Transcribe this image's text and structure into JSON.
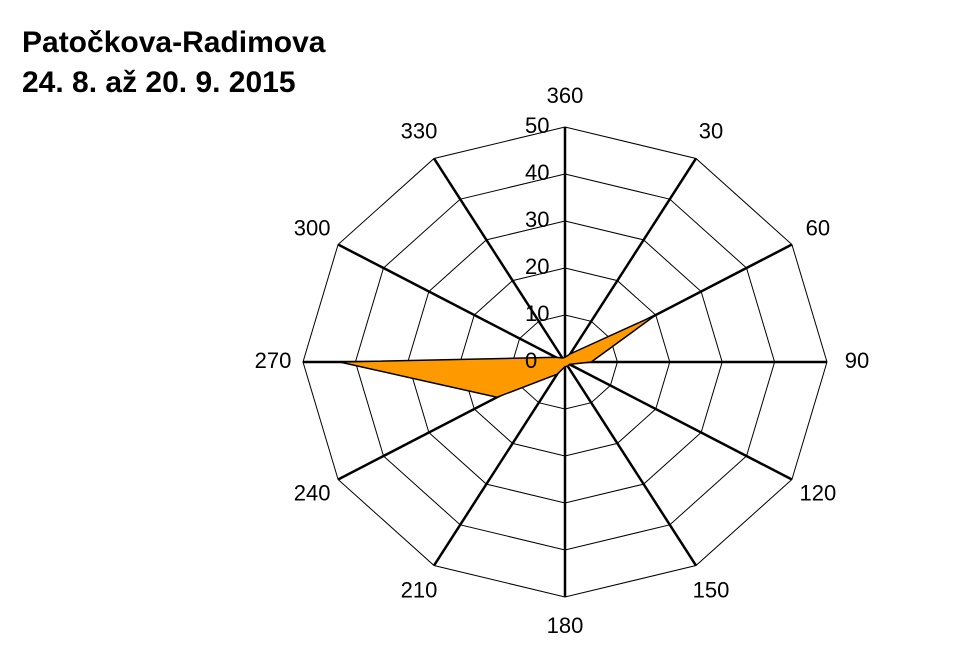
{
  "chart_data": {
    "type": "radar",
    "title": [
      "Patočkova-Radimova",
      "24. 8. až 20. 9. 2015"
    ],
    "categories": [
      "360",
      "30",
      "60",
      "90",
      "120",
      "150",
      "180",
      "210",
      "240",
      "270",
      "300",
      "330"
    ],
    "series": [
      {
        "color": "#ff9900",
        "values": [
          1,
          2,
          20,
          5,
          1,
          1,
          1,
          3,
          15,
          43,
          2,
          1
        ]
      }
    ],
    "ylim": [
      0,
      50
    ],
    "yticks": [
      0,
      10,
      20,
      30,
      40,
      50
    ],
    "grid": true
  }
}
